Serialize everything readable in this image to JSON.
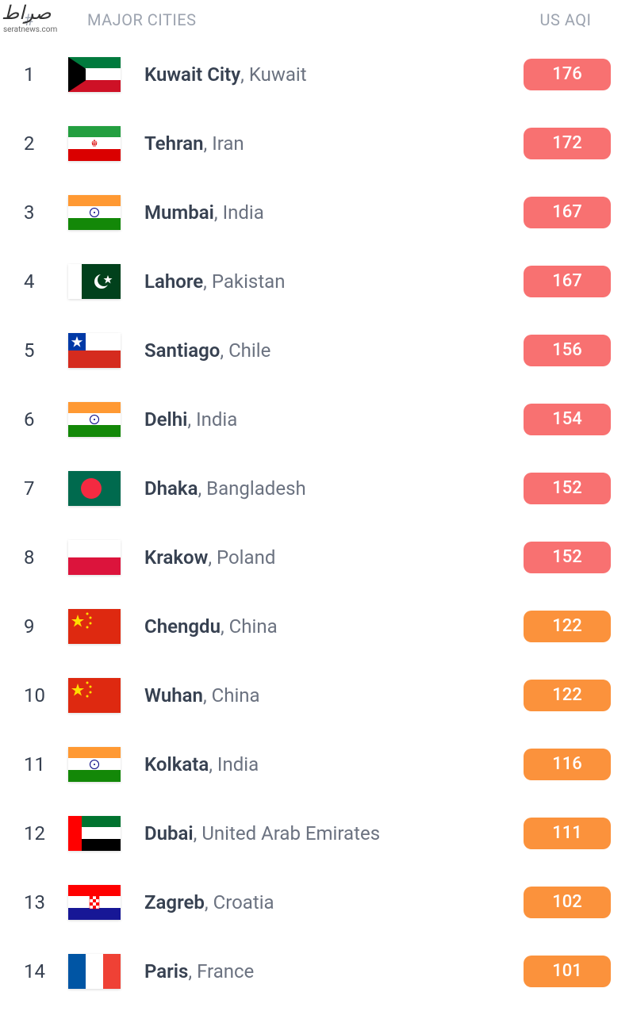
{
  "watermark": {
    "text": "صراط",
    "sub": "seratnews.com"
  },
  "header": {
    "hash": "#",
    "cities": "MAJOR CITIES",
    "aqi": "US AQI"
  },
  "colors": {
    "badge_red": "#f87171",
    "badge_orange": "#fb923c",
    "header_text": "#9ca3af",
    "rank_text": "#374151",
    "city_bold": "#374151",
    "city_normal": "#6b7280"
  },
  "rows": [
    {
      "rank": "1",
      "city": "Kuwait City",
      "country": "Kuwait",
      "aqi": "176",
      "badge_color": "#f87171",
      "flag": "kuwait"
    },
    {
      "rank": "2",
      "city": "Tehran",
      "country": "Iran",
      "aqi": "172",
      "badge_color": "#f87171",
      "flag": "iran"
    },
    {
      "rank": "3",
      "city": "Mumbai",
      "country": "India",
      "aqi": "167",
      "badge_color": "#f87171",
      "flag": "india"
    },
    {
      "rank": "4",
      "city": "Lahore",
      "country": "Pakistan",
      "aqi": "167",
      "badge_color": "#f87171",
      "flag": "pakistan"
    },
    {
      "rank": "5",
      "city": "Santiago",
      "country": "Chile",
      "aqi": "156",
      "badge_color": "#f87171",
      "flag": "chile"
    },
    {
      "rank": "6",
      "city": "Delhi",
      "country": "India",
      "aqi": "154",
      "badge_color": "#f87171",
      "flag": "india"
    },
    {
      "rank": "7",
      "city": "Dhaka",
      "country": "Bangladesh",
      "aqi": "152",
      "badge_color": "#f87171",
      "flag": "bangladesh"
    },
    {
      "rank": "8",
      "city": "Krakow",
      "country": "Poland",
      "aqi": "152",
      "badge_color": "#f87171",
      "flag": "poland"
    },
    {
      "rank": "9",
      "city": "Chengdu",
      "country": "China",
      "aqi": "122",
      "badge_color": "#fb923c",
      "flag": "china"
    },
    {
      "rank": "10",
      "city": "Wuhan",
      "country": "China",
      "aqi": "122",
      "badge_color": "#fb923c",
      "flag": "china"
    },
    {
      "rank": "11",
      "city": "Kolkata",
      "country": "India",
      "aqi": "116",
      "badge_color": "#fb923c",
      "flag": "india"
    },
    {
      "rank": "12",
      "city": "Dubai",
      "country": "United Arab Emirates",
      "aqi": "111",
      "badge_color": "#fb923c",
      "flag": "uae"
    },
    {
      "rank": "13",
      "city": "Zagreb",
      "country": "Croatia",
      "aqi": "102",
      "badge_color": "#fb923c",
      "flag": "croatia"
    },
    {
      "rank": "14",
      "city": "Paris",
      "country": "France",
      "aqi": "101",
      "badge_color": "#fb923c",
      "flag": "france"
    }
  ],
  "flags": {
    "kuwait": {
      "type": "kuwait"
    },
    "iran": {
      "type": "iran"
    },
    "india": {
      "type": "india"
    },
    "pakistan": {
      "type": "pakistan"
    },
    "chile": {
      "type": "chile"
    },
    "bangladesh": {
      "type": "bangladesh"
    },
    "poland": {
      "type": "poland"
    },
    "china": {
      "type": "china"
    },
    "uae": {
      "type": "uae"
    },
    "croatia": {
      "type": "croatia"
    },
    "france": {
      "type": "france"
    }
  }
}
